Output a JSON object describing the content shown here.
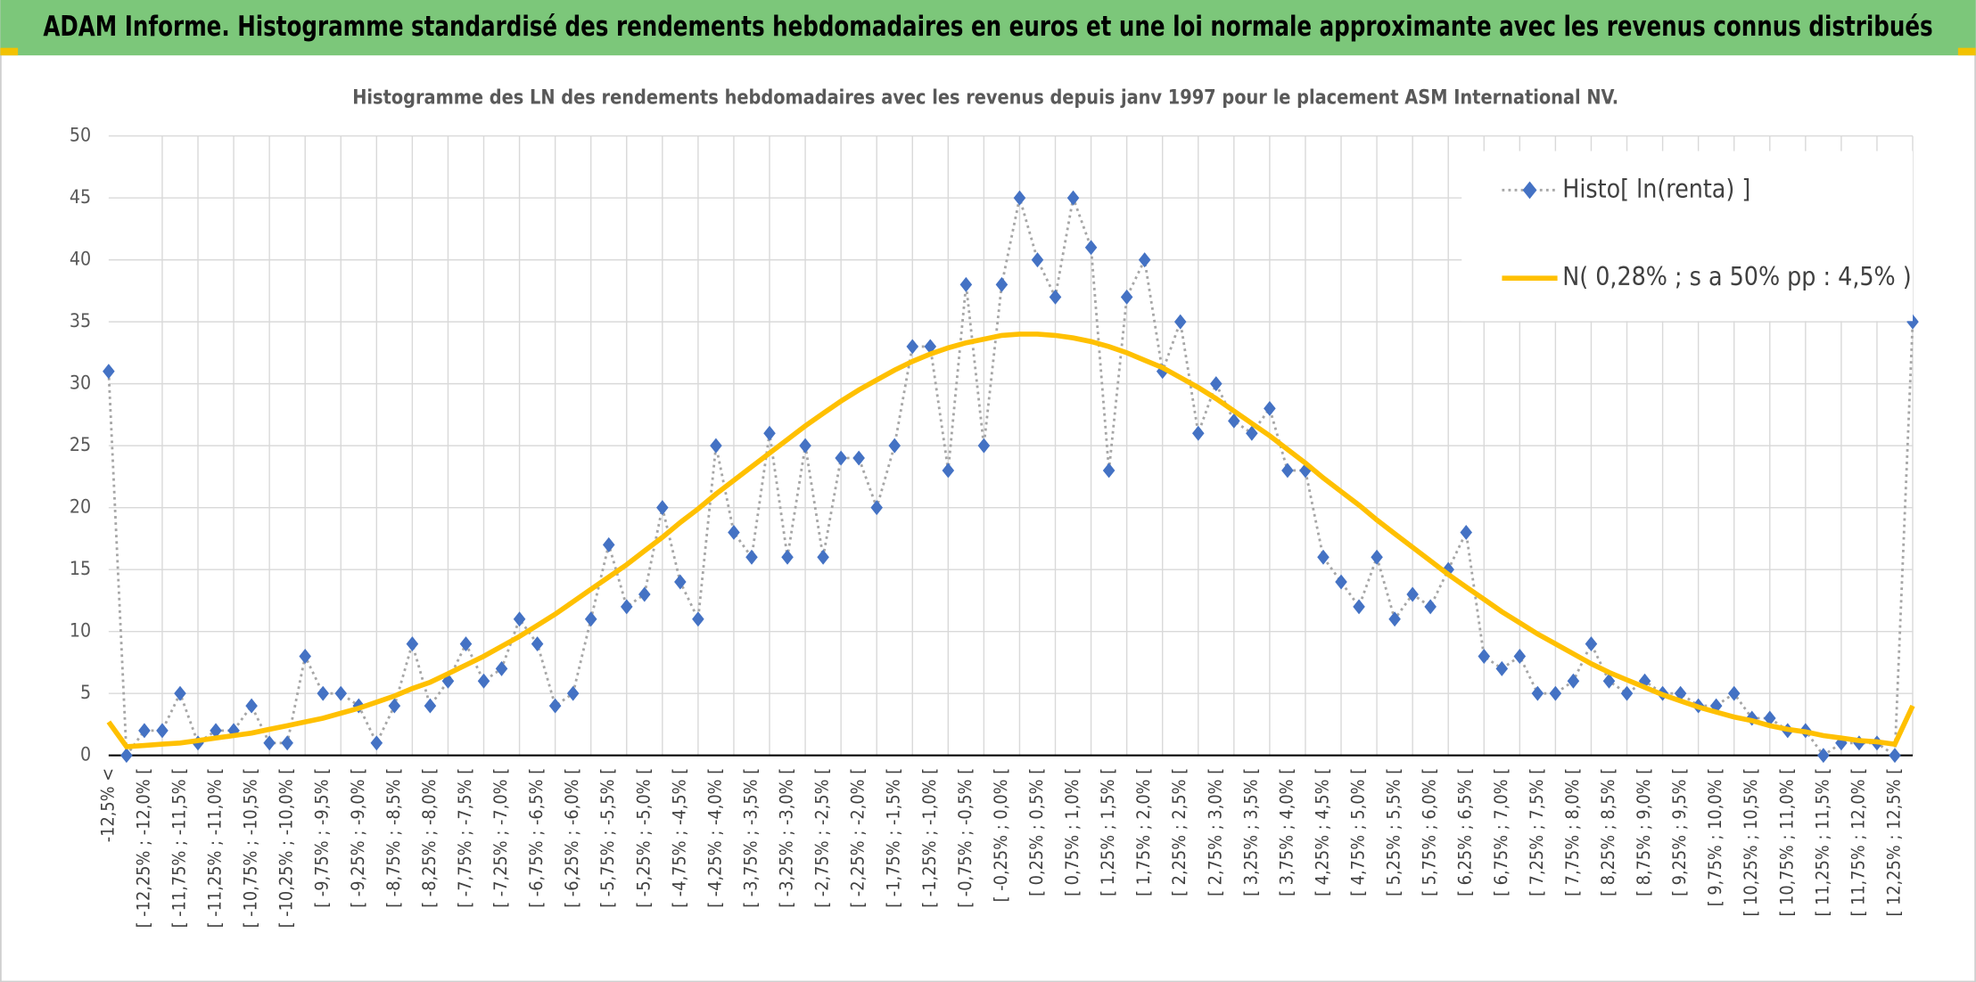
{
  "chart_data": {
    "type": "line",
    "header": "ADAM Informe. Histogramme standardisé des rendements hebdomadaires en euros et une loi normale approximante avec les revenus connus distribués",
    "title": "Histogramme des LN des rendements hebdomadaires avec les revenus depuis janv 1997 pour le placement ASM International NV.",
    "categories": [
      "-12,5% <",
      null,
      "[ -12,25% ; -12,0% [",
      null,
      "[ -11,75% ; -11,5% [",
      null,
      "[ -11,25% ; -11,0% [",
      null,
      "[ -10,75% ; -10,5% [",
      null,
      "[ -10,25% ; -10,0% [",
      null,
      "[ -9,75% ; -9,5% [",
      null,
      "[ -9,25% ; -9,0% [",
      null,
      "[ -8,75% ; -8,5% [",
      null,
      "[ -8,25% ; -8,0% [",
      null,
      "[ -7,75% ; -7,5% [",
      null,
      "[ -7,25% ; -7,0% [",
      null,
      "[ -6,75% ; -6,5% [",
      null,
      "[ -6,25% ; -6,0% [",
      null,
      "[ -5,75% ; -5,5% [",
      null,
      "[ -5,25% ; -5,0% [",
      null,
      "[ -4,75% ; -4,5% [",
      null,
      "[ -4,25% ; -4,0% [",
      null,
      "[ -3,75% ; -3,5% [",
      null,
      "[ -3,25% ; -3,0% [",
      null,
      "[ -2,75% ; -2,5% [",
      null,
      "[ -2,25% ; -2,0% [",
      null,
      "[ -1,75% ; -1,5% [",
      null,
      "[ -1,25% ; -1,0% [",
      null,
      "[ -0,75% ; -0,5% [",
      null,
      "[ -0,25% ; 0,0% [",
      null,
      "[ 0,25% ; 0,5% [",
      null,
      "[ 0,75% ; 1,0% [",
      null,
      "[ 1,25% ; 1,5% [",
      null,
      "[ 1,75% ; 2,0% [",
      null,
      "[ 2,25% ; 2,5% [",
      null,
      "[ 2,75% ; 3,0% [",
      null,
      "[ 3,25% ; 3,5% [",
      null,
      "[ 3,75% ; 4,0% [",
      null,
      "[ 4,25% ; 4,5% [",
      null,
      "[ 4,75% ; 5,0% [",
      null,
      "[ 5,25% ; 5,5% [",
      null,
      "[ 5,75% ; 6,0% [",
      null,
      "[ 6,25% ; 6,5% [",
      null,
      "[ 6,75% ; 7,0% [",
      null,
      "[ 7,25% ; 7,5% [",
      null,
      "[ 7,75% ; 8,0% [",
      null,
      "[ 8,25% ; 8,5% [",
      null,
      "[ 8,75% ; 9,0% [",
      null,
      "[ 9,25% ; 9,5% [",
      null,
      "[ 9,75% ; 10,0% [",
      null,
      "[ 10,25% ; 10,5% [",
      null,
      "[ 10,75% ; 11,0% [",
      null,
      "[ 11,25% ; 11,5% [",
      null,
      "[ 11,75% ; 12,0% [",
      null,
      "[ 12,25% ; 12,5% [",
      null
    ],
    "series": [
      {
        "name": "Histo[ ln(renta) ]",
        "color": "#4472c4",
        "line_color": "#a6a6a6",
        "line_style": "dotted",
        "marker": "diamond",
        "values": [
          31,
          0,
          2,
          2,
          5,
          1,
          2,
          2,
          4,
          1,
          1,
          8,
          5,
          5,
          4,
          1,
          4,
          9,
          4,
          6,
          9,
          6,
          7,
          11,
          9,
          4,
          5,
          11,
          17,
          12,
          13,
          20,
          14,
          11,
          25,
          18,
          16,
          26,
          16,
          25,
          16,
          24,
          24,
          20,
          25,
          33,
          33,
          23,
          38,
          25,
          38,
          45,
          40,
          37,
          45,
          41,
          23,
          37,
          40,
          31,
          35,
          26,
          30,
          27,
          26,
          28,
          23,
          23,
          16,
          14,
          12,
          16,
          11,
          13,
          12,
          15,
          18,
          8,
          7,
          8,
          5,
          5,
          6,
          9,
          6,
          5,
          6,
          5,
          5,
          4,
          4,
          5,
          3,
          3,
          2,
          2,
          0,
          1,
          1,
          1,
          0,
          35
        ]
      },
      {
        "name": "N( 0,28% ; s a 50% pp : 4,5% )",
        "color": "#ffc000",
        "line_style": "solid",
        "values": [
          2.7,
          0.7,
          0.8,
          0.9,
          1.0,
          1.2,
          1.4,
          1.6,
          1.8,
          2.1,
          2.4,
          2.7,
          3.0,
          3.4,
          3.8,
          4.3,
          4.8,
          5.4,
          5.9,
          6.6,
          7.3,
          8.0,
          8.8,
          9.6,
          10.5,
          11.4,
          12.4,
          13.4,
          14.4,
          15.4,
          16.5,
          17.6,
          18.8,
          19.9,
          21.1,
          22.2,
          23.3,
          24.4,
          25.5,
          26.6,
          27.6,
          28.6,
          29.5,
          30.3,
          31.1,
          31.8,
          32.4,
          32.9,
          33.3,
          33.6,
          33.9,
          34.0,
          34.0,
          33.9,
          33.7,
          33.4,
          33.0,
          32.5,
          31.9,
          31.3,
          30.5,
          29.7,
          28.8,
          27.8,
          26.8,
          25.8,
          24.7,
          23.6,
          22.4,
          21.3,
          20.2,
          19.0,
          17.9,
          16.8,
          15.7,
          14.6,
          13.6,
          12.6,
          11.6,
          10.7,
          9.8,
          9.0,
          8.2,
          7.4,
          6.7,
          6.1,
          5.5,
          4.9,
          4.4,
          3.9,
          3.5,
          3.1,
          2.8,
          2.4,
          2.1,
          1.9,
          1.6,
          1.4,
          1.2,
          1.1,
          0.9,
          4.0
        ]
      }
    ],
    "ylim": [
      0,
      50
    ],
    "yticks": [
      0,
      5,
      10,
      15,
      20,
      25,
      30,
      35,
      40,
      45,
      50
    ],
    "grid": true,
    "legend": "upper right"
  }
}
